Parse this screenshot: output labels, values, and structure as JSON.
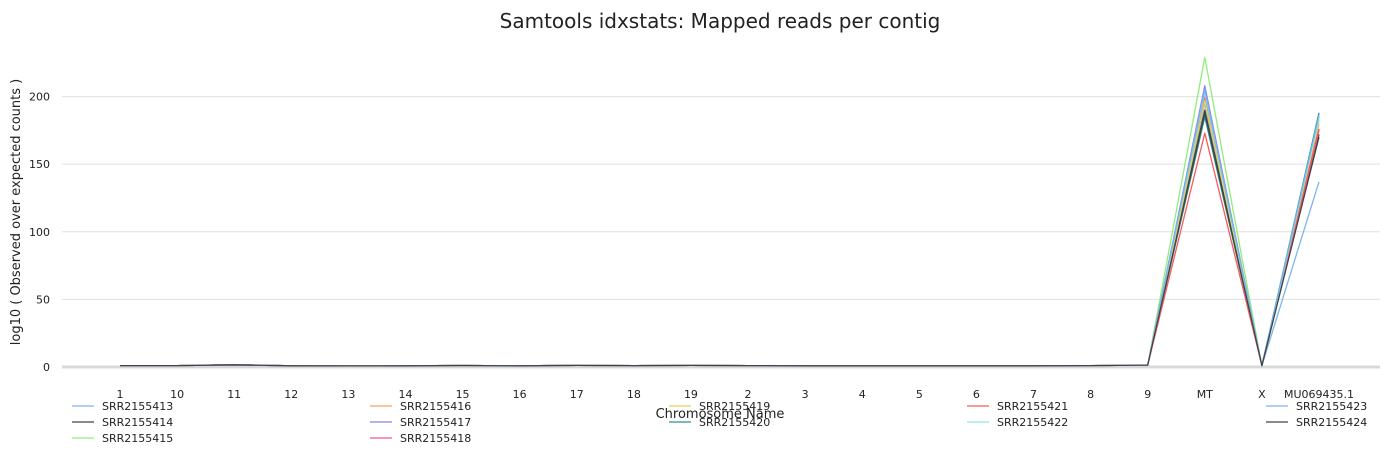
{
  "chart_data": {
    "type": "line",
    "title": "Samtools idxstats: Mapped reads per contig",
    "xlabel": "Chromosome Name",
    "ylabel": "log10 ( Observed over expected counts )",
    "ylim": [
      0,
      230
    ],
    "yticks": [
      0,
      50,
      100,
      150,
      200
    ],
    "grid": true,
    "legend_position": "bottom",
    "categories": [
      "1",
      "10",
      "11",
      "12",
      "13",
      "14",
      "15",
      "16",
      "17",
      "18",
      "19",
      "2",
      "3",
      "4",
      "5",
      "6",
      "7",
      "8",
      "9",
      "MT",
      "X",
      "MU069435.1"
    ],
    "series": [
      {
        "name": "SRR2155413",
        "color": "#7cb5ec",
        "values": [
          1.0,
          1.0,
          1.6,
          0.9,
          0.8,
          0.9,
          1.1,
          0.9,
          1.2,
          1.0,
          1.2,
          1.0,
          0.9,
          0.9,
          0.9,
          0.9,
          0.9,
          1.0,
          1.4,
          195,
          1.0,
          137
        ]
      },
      {
        "name": "SRR2155414",
        "color": "#434348",
        "values": [
          1.0,
          1.0,
          1.7,
          0.9,
          0.8,
          0.9,
          1.1,
          0.9,
          1.2,
          1.0,
          1.2,
          1.0,
          0.9,
          0.9,
          0.9,
          0.9,
          0.9,
          1.0,
          1.4,
          190,
          1.0,
          172
        ]
      },
      {
        "name": "SRR2155415",
        "color": "#90ed7d",
        "values": [
          1.0,
          1.0,
          1.6,
          0.9,
          0.8,
          0.9,
          1.1,
          0.9,
          1.2,
          1.0,
          1.2,
          1.0,
          0.9,
          0.9,
          0.9,
          0.9,
          0.9,
          1.0,
          1.4,
          229,
          1.0,
          185
        ]
      },
      {
        "name": "SRR2155416",
        "color": "#f7a35c",
        "values": [
          1.0,
          1.0,
          1.6,
          0.9,
          0.8,
          0.9,
          1.1,
          0.9,
          1.2,
          1.0,
          1.2,
          1.0,
          0.9,
          0.9,
          0.9,
          0.9,
          0.9,
          1.0,
          1.4,
          200,
          1.0,
          180
        ]
      },
      {
        "name": "SRR2155417",
        "color": "#8085e9",
        "values": [
          1.0,
          1.0,
          1.6,
          0.9,
          0.8,
          0.9,
          1.1,
          0.9,
          1.2,
          1.0,
          1.2,
          1.0,
          0.9,
          0.9,
          0.9,
          0.9,
          0.9,
          1.0,
          1.4,
          208,
          1.0,
          176
        ]
      },
      {
        "name": "SRR2155418",
        "color": "#f15c80",
        "values": [
          1.0,
          1.0,
          1.6,
          0.9,
          0.8,
          0.9,
          1.1,
          0.9,
          1.2,
          1.0,
          1.2,
          1.0,
          0.9,
          0.9,
          0.9,
          0.9,
          0.9,
          1.0,
          1.4,
          200,
          1.0,
          175
        ]
      },
      {
        "name": "SRR2155419",
        "color": "#e4d354",
        "values": [
          1.0,
          1.0,
          1.6,
          0.9,
          0.8,
          0.9,
          1.1,
          0.9,
          1.2,
          1.0,
          1.2,
          1.0,
          0.9,
          0.9,
          0.9,
          0.9,
          0.9,
          1.0,
          1.4,
          197,
          1.0,
          182
        ]
      },
      {
        "name": "SRR2155420",
        "color": "#2b908f",
        "values": [
          1.0,
          1.0,
          1.6,
          0.9,
          0.8,
          0.9,
          1.1,
          0.9,
          1.2,
          1.0,
          1.2,
          1.0,
          0.9,
          0.9,
          0.9,
          0.9,
          0.9,
          1.0,
          1.4,
          185,
          1.0,
          188
        ]
      },
      {
        "name": "SRR2155421",
        "color": "#f45b5b",
        "values": [
          1.0,
          1.0,
          1.6,
          0.9,
          0.8,
          0.9,
          1.1,
          0.9,
          1.2,
          1.0,
          1.2,
          1.0,
          0.9,
          0.9,
          0.9,
          0.9,
          0.9,
          1.0,
          1.4,
          173,
          1.0,
          176
        ]
      },
      {
        "name": "SRR2155422",
        "color": "#91e8e1",
        "values": [
          1.0,
          1.0,
          1.6,
          0.9,
          0.8,
          0.9,
          1.1,
          0.9,
          1.2,
          1.0,
          1.2,
          1.0,
          0.9,
          0.9,
          0.9,
          0.9,
          0.9,
          1.0,
          1.4,
          203,
          1.0,
          183
        ]
      },
      {
        "name": "SRR2155423",
        "color": "#7cb5ec",
        "values": [
          1.0,
          1.0,
          1.6,
          0.9,
          0.8,
          0.9,
          1.1,
          0.9,
          1.2,
          1.0,
          1.2,
          1.0,
          0.9,
          0.9,
          0.9,
          0.9,
          0.9,
          1.0,
          1.4,
          205,
          1.0,
          186
        ]
      },
      {
        "name": "SRR2155424",
        "color": "#434348",
        "values": [
          1.0,
          1.0,
          1.6,
          0.9,
          0.8,
          0.9,
          1.1,
          0.9,
          1.2,
          1.0,
          1.2,
          1.0,
          0.9,
          0.9,
          0.9,
          0.9,
          0.9,
          1.0,
          1.4,
          188,
          1.0,
          170
        ]
      }
    ]
  }
}
